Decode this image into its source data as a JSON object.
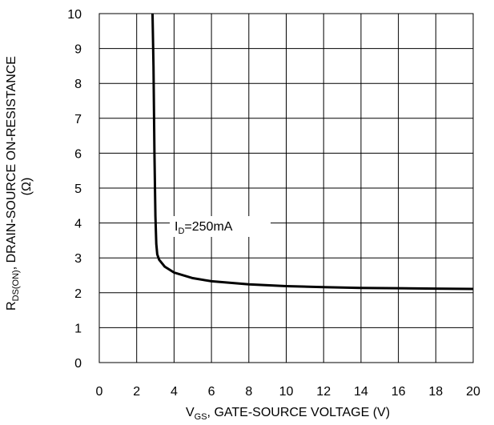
{
  "chart_data": {
    "type": "line",
    "xlabel": {
      "main": "V",
      "sub": "GS",
      "rest": ", GATE-SOURCE VOLTAGE (V)"
    },
    "ylabel": {
      "main": "R",
      "sub": "DS(ON)",
      "rest": ", DRAIN-SOURCE ON-RESISTANCE",
      "unit": "(Ω)"
    },
    "xlim": [
      0,
      20
    ],
    "ylim": [
      0,
      10
    ],
    "xticks": [
      "0",
      "2",
      "4",
      "6",
      "8",
      "10",
      "12",
      "14",
      "16",
      "18",
      "20"
    ],
    "yticks": [
      "0",
      "1",
      "2",
      "3",
      "4",
      "5",
      "6",
      "7",
      "8",
      "9",
      "10"
    ],
    "grid": true,
    "series": [
      {
        "name": "ID=250mA",
        "label": {
          "main": "I",
          "sub": "D",
          "rest": "=250mA"
        },
        "color": "#000000",
        "x": [
          2.85,
          2.9,
          2.95,
          3.0,
          3.05,
          3.1,
          3.2,
          3.5,
          4.0,
          5.0,
          6.0,
          8.0,
          10.0,
          12.0,
          14.0,
          16.0,
          18.0,
          20.0
        ],
        "y": [
          10.0,
          8.5,
          6.0,
          4.2,
          3.4,
          3.1,
          2.95,
          2.75,
          2.58,
          2.42,
          2.33,
          2.24,
          2.19,
          2.16,
          2.14,
          2.13,
          2.12,
          2.11
        ]
      }
    ]
  }
}
